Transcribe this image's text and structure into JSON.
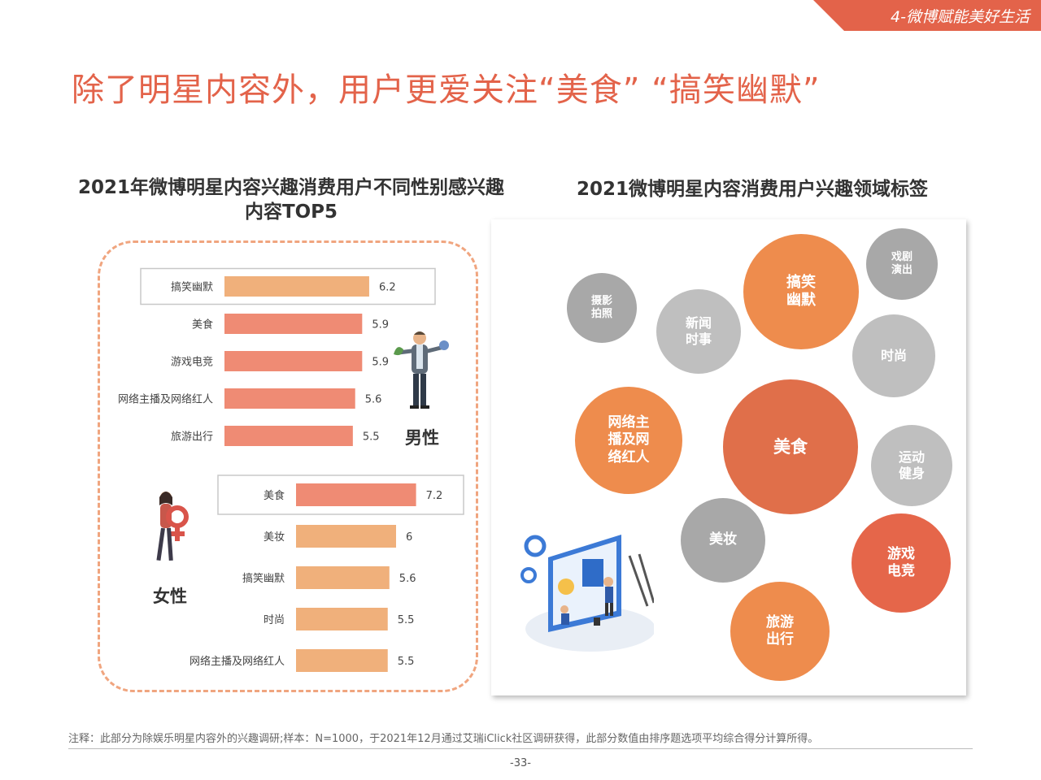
{
  "header": {
    "section_tag": "4-微博赋能美好生活"
  },
  "slide_title": "除了明星内容外，用户更爱关注“美食”  “搞笑幽默”",
  "chart_left": {
    "title": "2021年微博明星内容兴趣消费用户不同性别感兴趣内容TOP5"
  },
  "chart_right": {
    "title": "2021微博明星内容消费用户兴趣领域标签"
  },
  "gender": {
    "male": "男性",
    "female": "女性"
  },
  "colors": {
    "accent": "#e3634a",
    "male_bar": "#ef8b74",
    "male_top_bar": "#f0b07b",
    "female_bar": "#f0b07b",
    "female_top_bar": "#ef8b74",
    "bubble_orange": "#ee8c4d",
    "bubble_deep": "#e06f4a",
    "bubble_red": "#e5664a",
    "bubble_grey": "#bfbfbf",
    "bubble_dark_grey": "#a8a8a8"
  },
  "chart_data": [
    {
      "type": "bar",
      "orientation": "horizontal",
      "group": "男性",
      "categories": [
        "搞笑幽默",
        "美食",
        "游戏电竞",
        "网络主播及网络红人",
        "旅游出行"
      ],
      "values": [
        6.2,
        5.9,
        5.9,
        5.6,
        5.5
      ],
      "highlighted": "搞笑幽默"
    },
    {
      "type": "bar",
      "orientation": "horizontal",
      "group": "女性",
      "categories": [
        "美食",
        "美妆",
        "搞笑幽默",
        "时尚",
        "网络主播及网络红人"
      ],
      "values": [
        7.2,
        6,
        5.6,
        5.5,
        5.5
      ],
      "highlighted": "美食"
    }
  ],
  "interest_tags": [
    {
      "label": "搞笑\n幽默",
      "color": "#ee8c4d"
    },
    {
      "label": "戏剧\n演出",
      "color": "#a8a8a8"
    },
    {
      "label": "摄影\n拍照",
      "color": "#a8a8a8"
    },
    {
      "label": "新闻\n时事",
      "color": "#bfbfbf"
    },
    {
      "label": "时尚",
      "color": "#bfbfbf"
    },
    {
      "label": "网络主\n播及网\n络红人",
      "color": "#ee8c4d"
    },
    {
      "label": "美食",
      "color": "#e06f4a"
    },
    {
      "label": "运动\n健身",
      "color": "#bfbfbf"
    },
    {
      "label": "美妆",
      "color": "#a8a8a8"
    },
    {
      "label": "游戏\n电竞",
      "color": "#e5664a"
    },
    {
      "label": "旅游\n出行",
      "color": "#ee8c4d"
    }
  ],
  "footnote": "注释：此部分为除娱乐明星内容外的兴趣调研;样本：N=1000，于2021年12月通过艾瑞iClick社区调研获得，此部分数值由排序题选项平均综合得分计算所得。",
  "page_number": "-33-"
}
